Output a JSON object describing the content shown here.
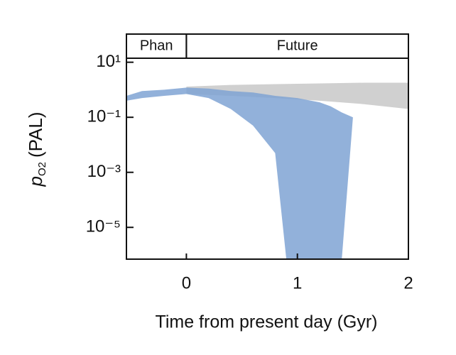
{
  "chart_data": {
    "type": "band",
    "y_label": {
      "symbol": "p",
      "subscript": "O2",
      "unit": "(PAL)"
    },
    "x_label": "Time from present day (Gyr)",
    "annotations": [
      {
        "text": "Phan",
        "x": [
          -0.54,
          0
        ]
      },
      {
        "text": "Future",
        "x": [
          0,
          2
        ]
      }
    ],
    "xlim": [
      -0.54,
      2
    ],
    "xticks": [
      0,
      1,
      2
    ],
    "ylim": [
      7e-07,
      14
    ],
    "log_y": true,
    "yticks": [
      {
        "value": 10,
        "label": "10¹"
      },
      {
        "value": 0.1,
        "label": "10⁻¹"
      },
      {
        "value": 0.001,
        "label": "10⁻³"
      },
      {
        "value": 1e-05,
        "label": "10⁻⁵"
      }
    ],
    "series": [
      {
        "color": "#c8c8c8",
        "x": [
          0,
          0.4,
          0.8,
          1.2,
          1.6,
          2
        ],
        "upper": [
          1.3,
          1.5,
          1.6,
          1.7,
          1.8,
          1.8
        ],
        "lower": [
          0.7,
          0.6,
          0.5,
          0.4,
          0.3,
          0.2
        ]
      },
      {
        "color": "#7fa3d4",
        "x": [
          -0.54,
          -0.4,
          -0.2,
          0,
          0.2,
          0.4,
          0.6,
          0.8,
          0.9,
          1.0,
          1.2,
          1.3,
          1.4,
          1.5
        ],
        "upper": [
          0.6,
          0.9,
          1,
          1.2,
          1.1,
          0.9,
          0.8,
          0.6,
          0.55,
          0.5,
          0.35,
          0.25,
          0.15,
          0.1
        ],
        "lower": [
          0.4,
          0.5,
          0.6,
          0.7,
          0.5,
          0.2,
          0.05,
          0.005,
          7e-07,
          7e-07,
          7e-07,
          7e-07,
          7e-07,
          0.1
        ]
      }
    ]
  }
}
